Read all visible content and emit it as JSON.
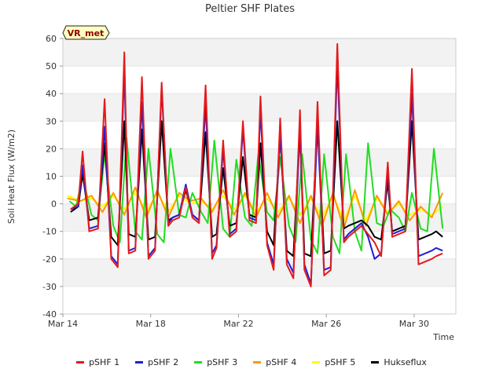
{
  "chart_data": {
    "type": "line",
    "title": "Peltier SHF Plates",
    "xlabel": "Time",
    "ylabel": "Soil Heat Flux (W/m2)",
    "annotation": "VR_met",
    "ylim": [
      -40,
      60
    ],
    "yticks": [
      -40,
      -30,
      -20,
      -10,
      0,
      10,
      20,
      30,
      40,
      50,
      60
    ],
    "xlim": [
      "Mar 14",
      "Mar 31.9"
    ],
    "xtick_labels": [
      "Mar 14",
      "Mar 18",
      "Mar 22",
      "Mar 26",
      "Mar 30"
    ],
    "xtick_days": [
      14,
      18,
      22,
      26,
      30
    ],
    "grid": "horizontal bands",
    "legend_position": "bottom",
    "x_unit": "day of March",
    "series": [
      {
        "name": "pSHF 1",
        "color": "#e41a1c",
        "x": [
          14.35,
          14.7,
          14.9,
          15.2,
          15.6,
          15.9,
          16.2,
          16.5,
          16.8,
          17.0,
          17.3,
          17.6,
          17.9,
          18.2,
          18.5,
          18.8,
          19.0,
          19.3,
          19.6,
          19.9,
          20.2,
          20.5,
          20.8,
          21.0,
          21.3,
          21.6,
          21.9,
          22.2,
          22.5,
          22.8,
          23.0,
          23.3,
          23.6,
          23.9,
          24.2,
          24.5,
          24.8,
          25.0,
          25.3,
          25.6,
          25.9,
          26.2,
          26.5,
          26.8,
          27.0,
          27.3,
          27.6,
          27.9,
          28.2,
          28.5,
          28.8,
          29.0,
          29.3,
          29.6,
          29.9,
          30.2,
          30.5,
          30.8,
          31.0,
          31.3
        ],
        "y": [
          -2,
          0,
          19,
          -10,
          -9,
          38,
          -20,
          -23,
          55,
          -18,
          -17,
          46,
          -20,
          -17,
          44,
          -8,
          -6,
          -5,
          6,
          -5,
          -7,
          43,
          -20,
          -16,
          23,
          -12,
          -10,
          30,
          -6,
          -7,
          39,
          -15,
          -24,
          31,
          -22,
          -27,
          34,
          -24,
          -30,
          37,
          -26,
          -24,
          58,
          -14,
          -12,
          -10,
          -8,
          -11,
          -14,
          -19,
          15,
          -12,
          -11,
          -10,
          49,
          -22,
          -21,
          -20,
          -19,
          -18
        ]
      },
      {
        "name": "pSHF 2",
        "color": "#1f1fd6",
        "x": [
          14.35,
          14.7,
          14.9,
          15.2,
          15.6,
          15.9,
          16.2,
          16.5,
          16.8,
          17.0,
          17.3,
          17.6,
          17.9,
          18.2,
          18.5,
          18.8,
          19.0,
          19.3,
          19.6,
          19.9,
          20.2,
          20.5,
          20.8,
          21.0,
          21.3,
          21.6,
          21.9,
          22.2,
          22.5,
          22.8,
          23.0,
          23.3,
          23.6,
          23.9,
          24.2,
          24.5,
          24.8,
          25.0,
          25.3,
          25.6,
          25.9,
          26.2,
          26.5,
          26.8,
          27.0,
          27.3,
          27.6,
          27.9,
          28.2,
          28.5,
          28.8,
          29.0,
          29.3,
          29.6,
          29.9,
          30.2,
          30.5,
          30.8,
          31.0,
          31.3
        ],
        "y": [
          -2,
          -1,
          14,
          -9,
          -8,
          28,
          -19,
          -22,
          49,
          -17,
          -16,
          37,
          -19,
          -16,
          42,
          -7,
          -5,
          -4,
          7,
          -4,
          -6,
          36,
          -18,
          -15,
          20,
          -11,
          -9,
          27,
          -5,
          -6,
          34,
          -14,
          -22,
          26,
          -20,
          -25,
          27,
          -22,
          -29,
          29,
          -24,
          -23,
          51,
          -13,
          -11,
          -9,
          -7,
          -12,
          -20,
          -18,
          12,
          -11,
          -10,
          -9,
          40,
          -19,
          -18,
          -17,
          -16,
          -17
        ]
      },
      {
        "name": "pSHF 3",
        "color": "#22dd22",
        "x": [
          14.3,
          14.6,
          14.9,
          15.3,
          15.6,
          15.9,
          16.3,
          16.6,
          16.9,
          17.3,
          17.6,
          17.9,
          18.3,
          18.6,
          18.9,
          19.3,
          19.6,
          19.9,
          20.3,
          20.6,
          20.9,
          21.3,
          21.6,
          21.9,
          22.3,
          22.6,
          22.9,
          23.3,
          23.6,
          23.9,
          24.3,
          24.6,
          24.9,
          25.3,
          25.6,
          25.9,
          26.3,
          26.6,
          26.9,
          27.3,
          27.6,
          27.9,
          28.3,
          28.6,
          28.9,
          29.3,
          29.6,
          29.9,
          30.3,
          30.6,
          30.9,
          31.3
        ],
        "y": [
          1,
          -1,
          10,
          -4,
          -6,
          18,
          -8,
          -14,
          24,
          -10,
          -13,
          20,
          -11,
          -14,
          20,
          -4,
          -5,
          4,
          -3,
          -7,
          23,
          -9,
          -12,
          16,
          -5,
          -8,
          18,
          -3,
          -6,
          17,
          -8,
          -14,
          18,
          -13,
          -18,
          18,
          -12,
          -18,
          18,
          -10,
          -17,
          22,
          -7,
          -8,
          -2,
          -5,
          -10,
          4,
          -9,
          -10,
          20,
          -9
        ]
      },
      {
        "name": "pSHF 4",
        "color": "#ff9900",
        "x": [
          14.2,
          14.8,
          15.3,
          15.8,
          16.3,
          16.8,
          17.3,
          17.8,
          18.3,
          18.8,
          19.3,
          19.8,
          20.3,
          20.8,
          21.3,
          21.8,
          22.3,
          22.8,
          23.3,
          23.8,
          24.3,
          24.8,
          25.3,
          25.8,
          26.3,
          26.8,
          27.3,
          27.8,
          28.3,
          28.8,
          29.3,
          29.8,
          30.3,
          30.8,
          31.3
        ],
        "y": [
          2,
          1,
          3,
          -3,
          4,
          -4,
          6,
          -5,
          5,
          -5,
          4,
          1,
          2,
          -3,
          5,
          -4,
          4,
          -5,
          4,
          -5,
          3,
          -7,
          3,
          -8,
          4,
          -9,
          5,
          -8,
          3,
          -4,
          1,
          -6,
          -1,
          -5,
          4
        ]
      },
      {
        "name": "pSHF 5",
        "color": "#ffff00",
        "x": [
          14.2,
          14.8,
          15.3,
          15.8,
          16.3,
          16.8,
          17.3,
          17.8,
          18.3,
          18.8,
          19.3,
          19.8,
          20.3,
          20.8,
          21.3,
          21.8,
          22.3,
          22.8,
          23.3,
          23.8,
          24.3,
          24.8,
          25.3,
          25.8,
          26.3,
          26.8,
          27.3,
          27.8,
          28.3,
          28.8,
          29.3,
          29.8,
          30.3,
          30.8,
          31.3
        ],
        "y": [
          3,
          1,
          2,
          -1,
          3,
          -2,
          4,
          -3,
          4,
          -3,
          3,
          0,
          1,
          -2,
          3,
          -2,
          3,
          -3,
          2,
          -3,
          2,
          -4,
          2,
          -5,
          3,
          -6,
          3,
          -6,
          2,
          -3,
          0,
          -4,
          -2,
          -4,
          -1
        ]
      },
      {
        "name": "Hukseflux",
        "color": "#000000",
        "x": [
          14.35,
          14.7,
          14.9,
          15.2,
          15.6,
          15.9,
          16.2,
          16.5,
          16.8,
          17.0,
          17.3,
          17.6,
          17.9,
          18.2,
          18.5,
          18.8,
          19.0,
          19.3,
          19.6,
          19.9,
          20.2,
          20.5,
          20.8,
          21.0,
          21.3,
          21.6,
          21.9,
          22.2,
          22.5,
          22.8,
          23.0,
          23.3,
          23.6,
          23.9,
          24.2,
          24.5,
          24.8,
          25.0,
          25.3,
          25.6,
          25.9,
          26.2,
          26.5,
          26.8,
          27.0,
          27.3,
          27.6,
          27.9,
          28.2,
          28.5,
          28.8,
          29.0,
          29.3,
          29.6,
          29.9,
          30.2,
          30.5,
          30.8,
          31.0,
          31.3
        ],
        "y": [
          -3,
          -1,
          11,
          -6,
          -5,
          22,
          -12,
          -15,
          30,
          -11,
          -12,
          27,
          -13,
          -12,
          30,
          -6,
          -5,
          -4,
          5,
          -4,
          -6,
          26,
          -12,
          -11,
          13,
          -8,
          -7,
          17,
          -4,
          -5,
          22,
          -10,
          -15,
          25,
          -17,
          -19,
          27,
          -18,
          -19,
          29,
          -18,
          -17,
          30,
          -9,
          -8,
          -7,
          -6,
          -8,
          -12,
          -13,
          8,
          -10,
          -9,
          -8,
          30,
          -13,
          -12,
          -11,
          -10,
          -12
        ]
      }
    ]
  }
}
